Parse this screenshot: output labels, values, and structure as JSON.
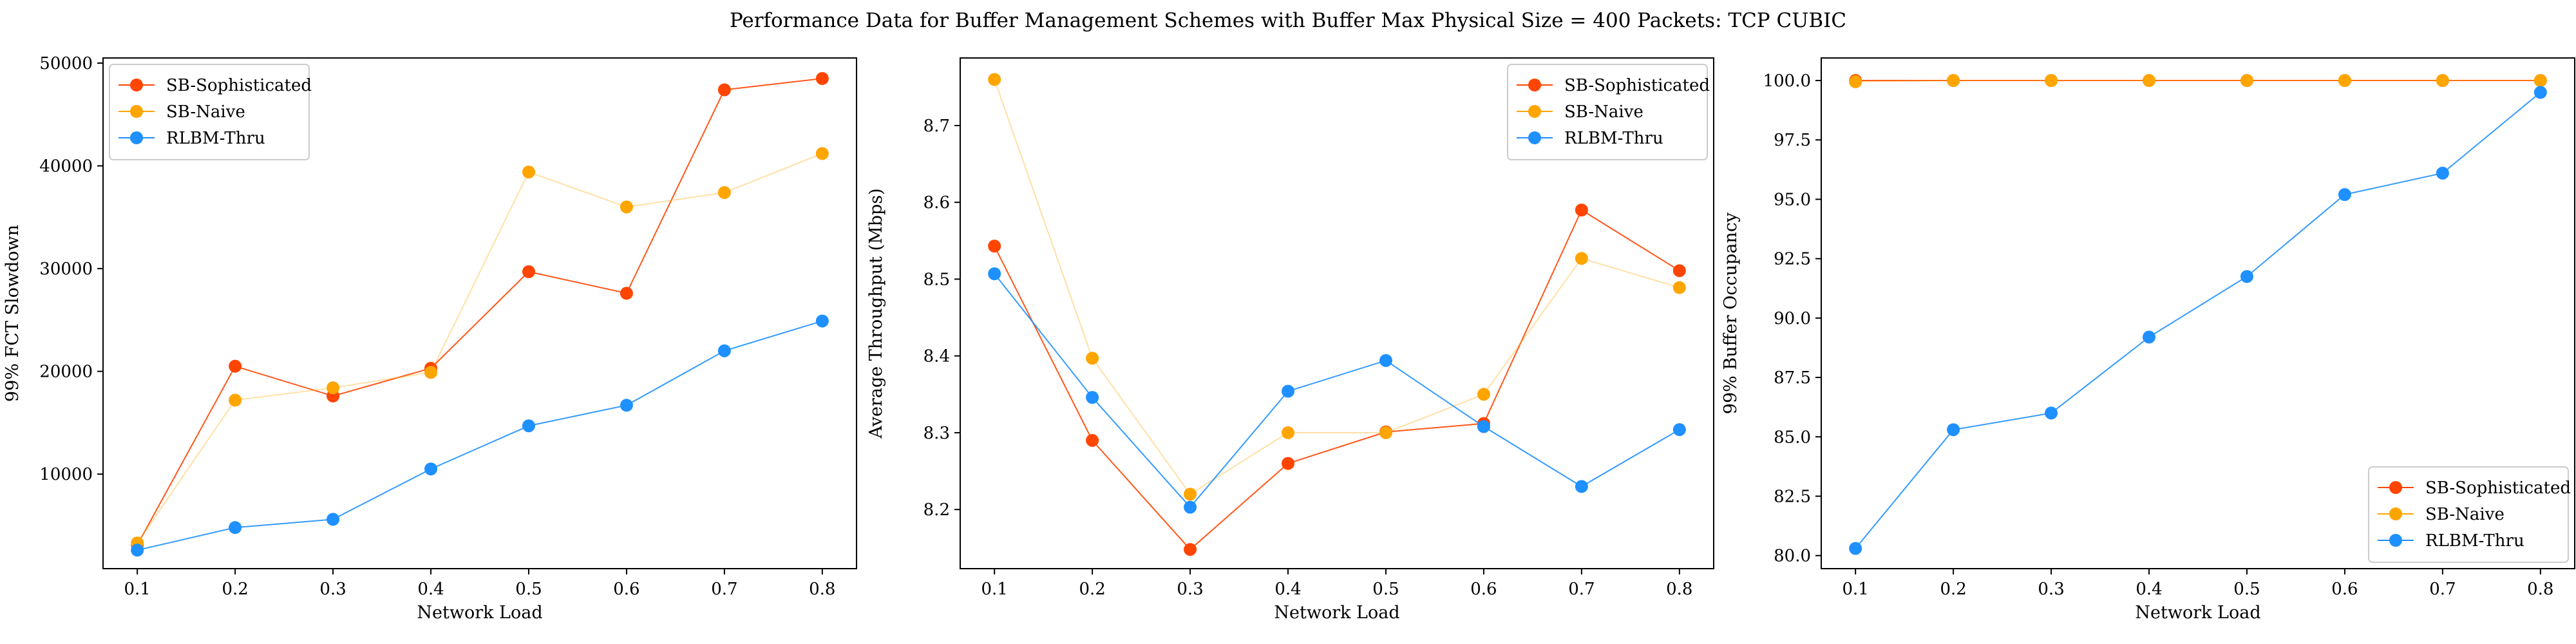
{
  "figure": {
    "title": "Performance Data for Buffer Management Schemes with Buffer Max Physical Size = 400 Packets: TCP CUBIC"
  },
  "colors": {
    "SB-Sophisticated": "#ff4500",
    "SB-Naive": "#ffa500",
    "RLBM-Thru": "#1e90ff"
  },
  "chart_data": [
    {
      "type": "line",
      "xlabel": "Network Load",
      "ylabel": "99% FCT Slowdown",
      "x": [
        0.1,
        0.2,
        0.3,
        0.4,
        0.5,
        0.6,
        0.7,
        0.8
      ],
      "xticks": [
        "0.1",
        "0.2",
        "0.3",
        "0.4",
        "0.5",
        "0.6",
        "0.7",
        "0.8"
      ],
      "xlim": [
        0.065,
        0.835
      ],
      "ylim": [
        800,
        50500
      ],
      "yticks": [
        "10000",
        "20000",
        "30000",
        "40000",
        "50000"
      ],
      "ytick_values": [
        10000,
        20000,
        30000,
        40000,
        50000
      ],
      "legend_position": "top-left",
      "series": [
        {
          "name": "SB-Sophisticated",
          "values": [
            3100,
            20500,
            17600,
            20300,
            29700,
            27600,
            47400,
            48500
          ]
        },
        {
          "name": "SB-Naive",
          "values": [
            3300,
            17200,
            18400,
            19900,
            39400,
            36000,
            37400,
            41200
          ]
        },
        {
          "name": "RLBM-Thru",
          "values": [
            2600,
            4800,
            5600,
            10500,
            14700,
            16700,
            22000,
            24900
          ]
        }
      ]
    },
    {
      "type": "line",
      "xlabel": "Network Load",
      "ylabel": "Average Throughput (Mbps)",
      "x": [
        0.1,
        0.2,
        0.3,
        0.4,
        0.5,
        0.6,
        0.7,
        0.8
      ],
      "xticks": [
        "0.1",
        "0.2",
        "0.3",
        "0.4",
        "0.5",
        "0.6",
        "0.7",
        "0.8"
      ],
      "xlim": [
        0.065,
        0.835
      ],
      "ylim": [
        8.123,
        8.788
      ],
      "yticks": [
        "8.2",
        "8.3",
        "8.4",
        "8.5",
        "8.6",
        "8.7"
      ],
      "ytick_values": [
        8.2,
        8.3,
        8.4,
        8.5,
        8.6,
        8.7
      ],
      "legend_position": "top-right",
      "series": [
        {
          "name": "SB-Sophisticated",
          "values": [
            8.543,
            8.29,
            8.148,
            8.26,
            8.301,
            8.312,
            8.59,
            8.511
          ]
        },
        {
          "name": "SB-Naive",
          "values": [
            8.76,
            8.397,
            8.22,
            8.3,
            8.3,
            8.35,
            8.527,
            8.489
          ]
        },
        {
          "name": "RLBM-Thru",
          "values": [
            8.507,
            8.346,
            8.203,
            8.354,
            8.394,
            8.308,
            8.23,
            8.304
          ]
        }
      ]
    },
    {
      "type": "line",
      "xlabel": "Network Load",
      "ylabel": "99% Buffer Occupancy",
      "x": [
        0.1,
        0.2,
        0.3,
        0.4,
        0.5,
        0.6,
        0.7,
        0.8
      ],
      "xticks": [
        "0.1",
        "0.2",
        "0.3",
        "0.4",
        "0.5",
        "0.6",
        "0.7",
        "0.8"
      ],
      "xlim": [
        0.065,
        0.835
      ],
      "ylim": [
        79.45,
        100.95
      ],
      "yticks": [
        "80.0",
        "82.5",
        "85.0",
        "87.5",
        "90.0",
        "92.5",
        "95.0",
        "97.5",
        "100.0"
      ],
      "ytick_values": [
        80.0,
        82.5,
        85.0,
        87.5,
        90.0,
        92.5,
        95.0,
        97.5,
        100.0
      ],
      "legend_position": "bottom-right",
      "series": [
        {
          "name": "SB-Sophisticated",
          "values": [
            100.0,
            100.0,
            100.0,
            100.0,
            100.0,
            100.0,
            100.0,
            100.0
          ]
        },
        {
          "name": "SB-Naive",
          "values": [
            99.95,
            100.0,
            100.0,
            100.0,
            100.0,
            100.0,
            100.0,
            100.0
          ]
        },
        {
          "name": "RLBM-Thru",
          "values": [
            80.3,
            85.3,
            86.0,
            89.2,
            91.75,
            95.2,
            96.1,
            99.5
          ]
        }
      ]
    }
  ]
}
